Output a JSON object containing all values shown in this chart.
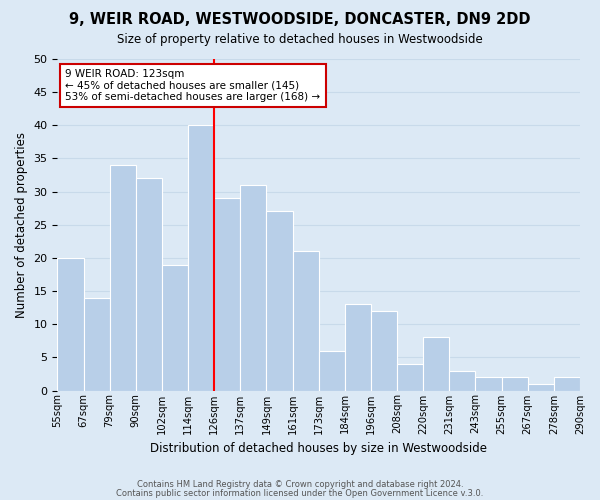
{
  "title": "9, WEIR ROAD, WESTWOODSIDE, DONCASTER, DN9 2DD",
  "subtitle": "Size of property relative to detached houses in Westwoodside",
  "xlabel": "Distribution of detached houses by size in Westwoodside",
  "ylabel": "Number of detached properties",
  "footer1": "Contains HM Land Registry data © Crown copyright and database right 2024.",
  "footer2": "Contains public sector information licensed under the Open Government Licence v.3.0.",
  "bin_labels": [
    "55sqm",
    "67sqm",
    "79sqm",
    "90sqm",
    "102sqm",
    "114sqm",
    "126sqm",
    "137sqm",
    "149sqm",
    "161sqm",
    "173sqm",
    "184sqm",
    "196sqm",
    "208sqm",
    "220sqm",
    "231sqm",
    "243sqm",
    "255sqm",
    "267sqm",
    "278sqm",
    "290sqm"
  ],
  "bar_values": [
    20,
    14,
    34,
    32,
    19,
    40,
    29,
    31,
    27,
    21,
    6,
    13,
    12,
    4,
    8,
    3,
    2,
    2,
    1,
    2
  ],
  "bar_color": "#b8cfe8",
  "bar_edge_color": "#ffffff",
  "red_line_index": 6,
  "annotation_text": "9 WEIR ROAD: 123sqm\n← 45% of detached houses are smaller (145)\n53% of semi-detached houses are larger (168) →",
  "annotation_box_color": "#ffffff",
  "annotation_box_edge_color": "#cc0000",
  "ylim": [
    0,
    50
  ],
  "yticks": [
    0,
    5,
    10,
    15,
    20,
    25,
    30,
    35,
    40,
    45,
    50
  ],
  "grid_color": "#c8daea",
  "background_color": "#dce9f5"
}
